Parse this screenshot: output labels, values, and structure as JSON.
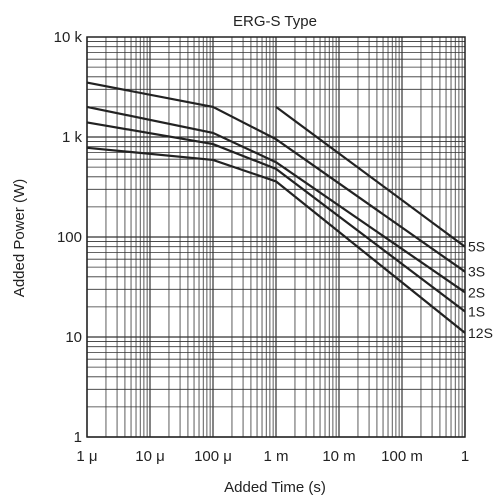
{
  "chart_data": {
    "type": "line",
    "title": "ERG-S Type",
    "xlabel": "Added Time (s)",
    "ylabel": "Added Power (W)",
    "x_scale": "log",
    "y_scale": "log",
    "xlim": [
      1e-06,
      1
    ],
    "ylim": [
      1,
      10000
    ],
    "grid": true,
    "x_ticks": [
      {
        "value": 1e-06,
        "label": "1 μ"
      },
      {
        "value": 1e-05,
        "label": "10 μ"
      },
      {
        "value": 0.0001,
        "label": "100 μ"
      },
      {
        "value": 0.001,
        "label": "1 m"
      },
      {
        "value": 0.01,
        "label": "10 m"
      },
      {
        "value": 0.1,
        "label": "100 m"
      },
      {
        "value": 1,
        "label": "1"
      }
    ],
    "y_ticks": [
      {
        "value": 1,
        "label": "1"
      },
      {
        "value": 10,
        "label": "10"
      },
      {
        "value": 100,
        "label": "100"
      },
      {
        "value": 1000,
        "label": "1 k"
      },
      {
        "value": 10000,
        "label": "10 k"
      }
    ],
    "series": [
      {
        "name": "5S",
        "x": [
          0.001,
          1
        ],
        "y": [
          2000,
          80
        ]
      },
      {
        "name": "3S",
        "x": [
          1e-06,
          0.0001,
          0.001,
          1
        ],
        "y": [
          3500,
          2000,
          950,
          45
        ]
      },
      {
        "name": "2S",
        "x": [
          1e-06,
          0.0001,
          0.001,
          1
        ],
        "y": [
          2000,
          1100,
          560,
          28
        ]
      },
      {
        "name": "1S",
        "x": [
          1e-06,
          0.0001,
          0.001,
          1
        ],
        "y": [
          1400,
          850,
          480,
          18
        ]
      },
      {
        "name": "12S",
        "x": [
          1e-06,
          0.0001,
          0.001,
          1
        ],
        "y": [
          780,
          590,
          360,
          11
        ]
      }
    ]
  }
}
